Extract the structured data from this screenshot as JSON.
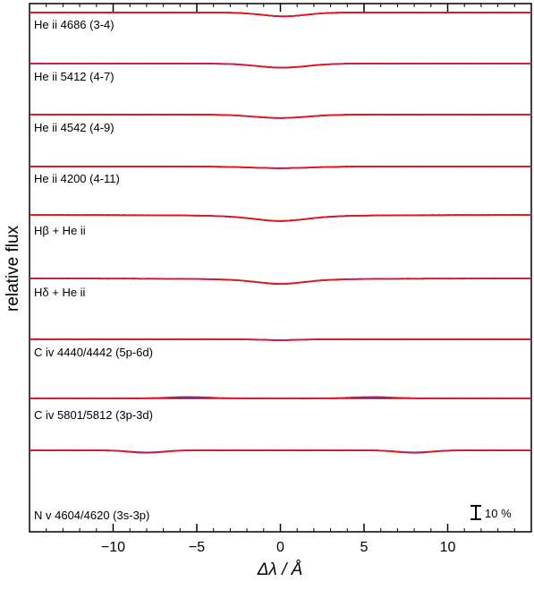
{
  "chart_data": {
    "type": "line",
    "xlabel": "Δλ / Å",
    "ylabel": "relative flux",
    "xlim": [
      -15,
      15
    ],
    "xticks": [
      -10,
      -5,
      0,
      5,
      10
    ],
    "xtick_labels": [
      "−10",
      "−5",
      "0",
      "5",
      "10"
    ],
    "scale_bar_label": "10 %",
    "scale_bar_fraction": 0.1,
    "colors": {
      "observed": "#000000",
      "model_blue": "#1f2ad8",
      "model_red": "#e8141a"
    },
    "panels": [
      {
        "label": "He ii 4686 (3-4)",
        "type": "absorption",
        "center": 0.2,
        "width": 1.3,
        "depth": 0.028
      },
      {
        "label": "He ii 5412 (4-7)",
        "type": "absorption",
        "center": 0.1,
        "width": 1.5,
        "depth": 0.03
      },
      {
        "label": "He ii 4542 (4-9)",
        "type": "absorption",
        "center": 0.0,
        "width": 1.6,
        "depth": 0.025
      },
      {
        "label": "He ii 4200 (4-11)",
        "type": "absorption",
        "center": 0.0,
        "width": 1.8,
        "depth": 0.012
      },
      {
        "label": "Hβ + He ii",
        "type": "absorption",
        "center": 0.0,
        "width": 2.5,
        "depth": 0.045
      },
      {
        "label": "Hδ + He ii",
        "type": "absorption",
        "center": 0.0,
        "width": 2.3,
        "depth": 0.04
      },
      {
        "label": "C iv 4440/4442 (5p-6d)",
        "type": "absorption",
        "center": 0.0,
        "width": 1.0,
        "depth": 0.006
      },
      {
        "label": "C iv 5801/5812 (3p-3d)",
        "type": "emission-pair",
        "centers": [
          -5.5,
          5.5
        ],
        "width": 1.0,
        "height": 0.01
      },
      {
        "label": "N v 4604/4620 (3s-3p)",
        "type": "absorption-pair",
        "centers": [
          -8.0,
          8.0
        ],
        "width": 1.0,
        "depth": 0.018
      }
    ]
  }
}
